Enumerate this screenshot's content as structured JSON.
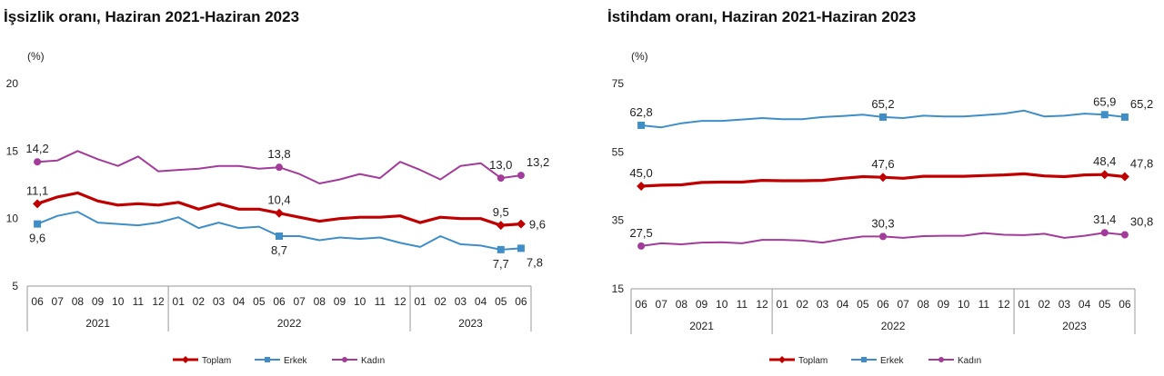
{
  "chart_data": [
    {
      "type": "line",
      "title": "İşsizlik oranı, Haziran 2021-Haziran 2023",
      "unit": "(%)",
      "ylim": [
        5,
        20
      ],
      "yticks": [
        "5",
        "10",
        "15",
        "20"
      ],
      "categories": [
        "06",
        "07",
        "08",
        "09",
        "10",
        "11",
        "12",
        "01",
        "02",
        "03",
        "04",
        "05",
        "06",
        "07",
        "08",
        "09",
        "10",
        "11",
        "12",
        "01",
        "02",
        "03",
        "04",
        "05",
        "06"
      ],
      "years": [
        {
          "label": "2021",
          "start": 0,
          "end": 6
        },
        {
          "label": "2022",
          "start": 7,
          "end": 18
        },
        {
          "label": "2023",
          "start": 19,
          "end": 24
        }
      ],
      "series": [
        {
          "name": "Toplam",
          "color": "#c00000",
          "marker": "diamond",
          "values": [
            11.1,
            11.6,
            11.9,
            11.3,
            11.0,
            11.1,
            11.0,
            11.2,
            10.7,
            11.1,
            10.7,
            10.7,
            10.4,
            10.1,
            9.8,
            10.0,
            10.1,
            10.1,
            10.2,
            9.7,
            10.1,
            10.0,
            10.0,
            9.5,
            9.6
          ],
          "labels": [
            {
              "i": 0,
              "text": "11,1",
              "pos": "above"
            },
            {
              "i": 12,
              "text": "10,4",
              "pos": "above"
            },
            {
              "i": 23,
              "text": "9,5",
              "pos": "above"
            },
            {
              "i": 24,
              "text": "9,6",
              "pos": "right"
            }
          ]
        },
        {
          "name": "Erkek",
          "color": "#3f8ec8",
          "marker": "square",
          "values": [
            9.6,
            10.2,
            10.5,
            9.7,
            9.6,
            9.5,
            9.7,
            10.1,
            9.3,
            9.7,
            9.3,
            9.4,
            8.7,
            8.7,
            8.4,
            8.6,
            8.5,
            8.6,
            8.2,
            7.9,
            8.7,
            8.1,
            8.0,
            7.7,
            7.8
          ],
          "labels": [
            {
              "i": 0,
              "text": "9,6",
              "pos": "below"
            },
            {
              "i": 12,
              "text": "8,7",
              "pos": "below"
            },
            {
              "i": 23,
              "text": "7,7",
              "pos": "below"
            },
            {
              "i": 24,
              "text": "7,8",
              "pos": "belowright"
            }
          ]
        },
        {
          "name": "Kadın",
          "color": "#a23b9a",
          "marker": "circle",
          "values": [
            14.2,
            14.3,
            15.0,
            14.4,
            13.9,
            14.6,
            13.5,
            13.6,
            13.7,
            13.9,
            13.9,
            13.7,
            13.8,
            13.3,
            12.6,
            12.9,
            13.3,
            13.0,
            14.2,
            13.6,
            12.9,
            13.9,
            14.1,
            13.0,
            13.2
          ],
          "labels": [
            {
              "i": 0,
              "text": "14,2",
              "pos": "above"
            },
            {
              "i": 12,
              "text": "13,8",
              "pos": "above"
            },
            {
              "i": 23,
              "text": "13,0",
              "pos": "above"
            },
            {
              "i": 24,
              "text": "13,2",
              "pos": "aboveright"
            }
          ]
        }
      ]
    },
    {
      "type": "line",
      "title": "İstihdam oranı, Haziran 2021-Haziran 2023",
      "unit": "(%)",
      "ylim": [
        15,
        75
      ],
      "yticks": [
        "15",
        "35",
        "55",
        "75"
      ],
      "categories": [
        "06",
        "07",
        "08",
        "09",
        "10",
        "11",
        "12",
        "01",
        "02",
        "03",
        "04",
        "05",
        "06",
        "07",
        "08",
        "09",
        "10",
        "11",
        "12",
        "01",
        "02",
        "03",
        "04",
        "05",
        "06"
      ],
      "years": [
        {
          "label": "2021",
          "start": 0,
          "end": 6
        },
        {
          "label": "2022",
          "start": 7,
          "end": 18
        },
        {
          "label": "2023",
          "start": 19,
          "end": 24
        }
      ],
      "series": [
        {
          "name": "Toplam",
          "color": "#c00000",
          "marker": "diamond",
          "values": [
            45.0,
            45.3,
            45.4,
            46.1,
            46.2,
            46.2,
            46.7,
            46.6,
            46.6,
            46.7,
            47.3,
            47.8,
            47.6,
            47.3,
            47.9,
            47.9,
            47.9,
            48.1,
            48.3,
            48.6,
            48.0,
            47.8,
            48.3,
            48.4,
            47.8
          ],
          "labels": [
            {
              "i": 0,
              "text": "45,0",
              "pos": "above"
            },
            {
              "i": 12,
              "text": "47,6",
              "pos": "above"
            },
            {
              "i": 23,
              "text": "48,4",
              "pos": "above"
            },
            {
              "i": 24,
              "text": "47,8",
              "pos": "aboveright"
            }
          ]
        },
        {
          "name": "Erkek",
          "color": "#3f8ec8",
          "marker": "square",
          "values": [
            62.8,
            62.2,
            63.4,
            64.1,
            64.1,
            64.5,
            64.9,
            64.6,
            64.6,
            65.2,
            65.5,
            65.9,
            65.2,
            64.9,
            65.6,
            65.4,
            65.4,
            65.8,
            66.2,
            67.1,
            65.4,
            65.6,
            66.2,
            65.9,
            65.2
          ],
          "labels": [
            {
              "i": 0,
              "text": "62,8",
              "pos": "above"
            },
            {
              "i": 12,
              "text": "65,2",
              "pos": "above"
            },
            {
              "i": 23,
              "text": "65,9",
              "pos": "above"
            },
            {
              "i": 24,
              "text": "65,2",
              "pos": "aboveright"
            }
          ]
        },
        {
          "name": "Kadın",
          "color": "#a23b9a",
          "marker": "circle",
          "values": [
            27.5,
            28.3,
            28.0,
            28.5,
            28.6,
            28.3,
            29.3,
            29.3,
            29.1,
            28.5,
            29.5,
            30.3,
            30.3,
            29.9,
            30.4,
            30.5,
            30.5,
            31.3,
            30.8,
            30.7,
            31.1,
            29.9,
            30.5,
            31.4,
            30.8
          ],
          "labels": [
            {
              "i": 0,
              "text": "27,5",
              "pos": "above"
            },
            {
              "i": 12,
              "text": "30,3",
              "pos": "above"
            },
            {
              "i": 23,
              "text": "31,4",
              "pos": "above"
            },
            {
              "i": 24,
              "text": "30,8",
              "pos": "aboveright"
            }
          ]
        }
      ]
    }
  ]
}
